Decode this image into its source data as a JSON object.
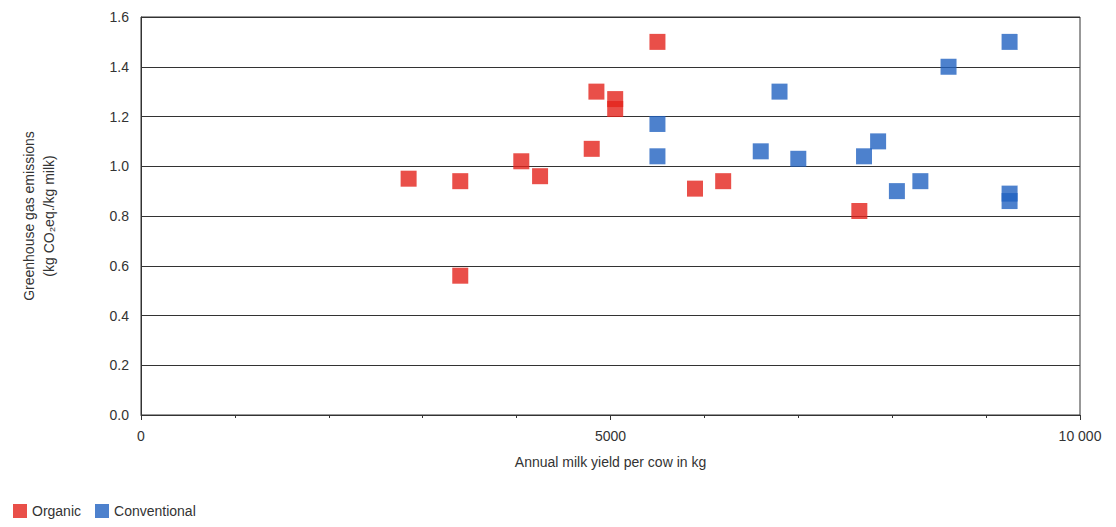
{
  "chart_data": {
    "type": "scatter",
    "x_label": "Annual milk yield per cow in kg",
    "y_label": "Greenhouse gas emissions\n(kg CO₂eq./kg milk)",
    "xlim": [
      0,
      10000
    ],
    "xticks": [
      0,
      5000,
      {
        "value": 10000,
        "label": "10 000"
      }
    ],
    "ylim": [
      0,
      1.6
    ],
    "yticks": [
      {
        "value": 0,
        "label": "0.0"
      },
      0.2,
      0.4,
      0.6,
      0.8,
      {
        "value": 1,
        "label": "1.0"
      },
      1.2,
      1.4,
      1.6
    ],
    "grid": true,
    "legend": "bottom-left",
    "marker": "square",
    "series": [
      {
        "name": "Organic",
        "color": "#e3231b",
        "x": [
          2850,
          3400,
          3400,
          4050,
          4250,
          4800,
          4850,
          5050,
          5050,
          5500,
          5900,
          6200,
          7650
        ],
        "values": [
          0.95,
          0.94,
          0.56,
          1.02,
          0.96,
          1.07,
          1.3,
          1.27,
          1.23,
          1.5,
          0.91,
          0.94,
          0.82
        ]
      },
      {
        "name": "Conventional",
        "color": "#2162c0",
        "x": [
          5500,
          5500,
          6600,
          6800,
          7000,
          7700,
          7850,
          8050,
          8300,
          8600,
          9250,
          9250,
          9250
        ],
        "values": [
          1.17,
          1.04,
          1.06,
          1.3,
          1.03,
          1.04,
          1.1,
          0.9,
          0.94,
          1.4,
          1.5,
          0.89,
          0.86
        ]
      }
    ]
  }
}
